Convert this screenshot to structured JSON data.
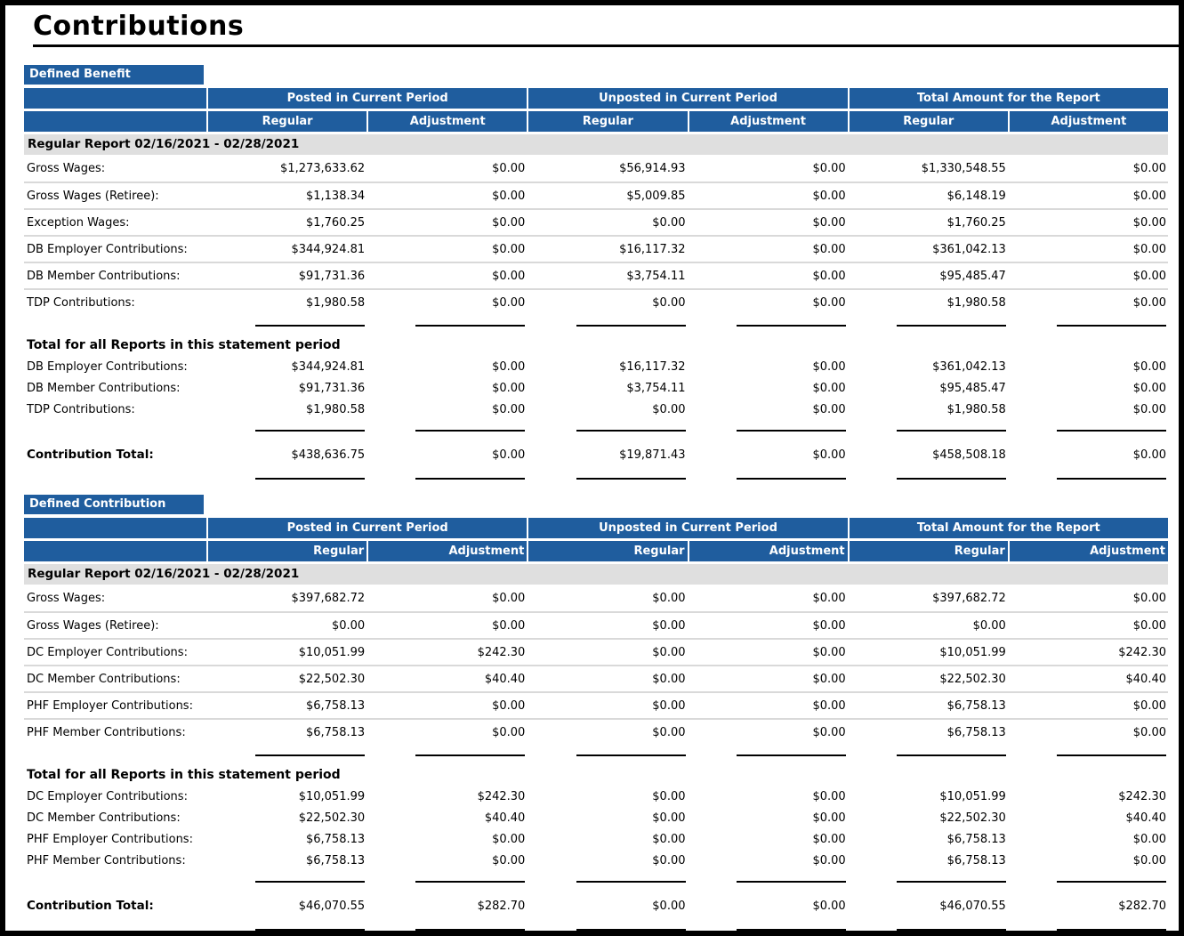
{
  "page": {
    "title": "Contributions"
  },
  "colors": {
    "header_blue": "#1F5D9E",
    "band_gray": "#DFDFDF",
    "row_divider": "#D9D9D9"
  },
  "columns": {
    "groups": [
      "Posted in Current Period",
      "Unposted in Current Period",
      "Total Amount for the Report"
    ],
    "subheaders": [
      "Regular",
      "Adjustment",
      "Regular",
      "Adjustment",
      "Regular",
      "Adjustment"
    ]
  },
  "sections": [
    {
      "name": "Defined Benefit",
      "subheader_align": "center",
      "report_band": "Regular Report 02/16/2021 - 02/28/2021",
      "detail_rows": [
        {
          "label": "Gross Wages:",
          "values": [
            "$1,273,633.62",
            "$0.00",
            "$56,914.93",
            "$0.00",
            "$1,330,548.55",
            "$0.00"
          ]
        },
        {
          "label": "Gross Wages (Retiree):",
          "values": [
            "$1,138.34",
            "$0.00",
            "$5,009.85",
            "$0.00",
            "$6,148.19",
            "$0.00"
          ]
        },
        {
          "label": "Exception Wages:",
          "values": [
            "$1,760.25",
            "$0.00",
            "$0.00",
            "$0.00",
            "$1,760.25",
            "$0.00"
          ]
        },
        {
          "label": "DB Employer Contributions:",
          "values": [
            "$344,924.81",
            "$0.00",
            "$16,117.32",
            "$0.00",
            "$361,042.13",
            "$0.00"
          ]
        },
        {
          "label": "DB Member Contributions:",
          "values": [
            "$91,731.36",
            "$0.00",
            "$3,754.11",
            "$0.00",
            "$95,485.47",
            "$0.00"
          ]
        },
        {
          "label": "TDP Contributions:",
          "values": [
            "$1,980.58",
            "$0.00",
            "$0.00",
            "$0.00",
            "$1,980.58",
            "$0.00"
          ]
        }
      ],
      "totals_heading": "Total for all Reports in this statement period",
      "total_rows": [
        {
          "label": "DB Employer Contributions:",
          "values": [
            "$344,924.81",
            "$0.00",
            "$16,117.32",
            "$0.00",
            "$361,042.13",
            "$0.00"
          ]
        },
        {
          "label": "DB Member Contributions:",
          "values": [
            "$91,731.36",
            "$0.00",
            "$3,754.11",
            "$0.00",
            "$95,485.47",
            "$0.00"
          ]
        },
        {
          "label": "TDP Contributions:",
          "values": [
            "$1,980.58",
            "$0.00",
            "$0.00",
            "$0.00",
            "$1,980.58",
            "$0.00"
          ]
        }
      ],
      "grand_total": {
        "label": "Contribution Total:",
        "values": [
          "$438,636.75",
          "$0.00",
          "$19,871.43",
          "$0.00",
          "$458,508.18",
          "$0.00"
        ]
      }
    },
    {
      "name": "Defined Contribution",
      "subheader_align": "right",
      "report_band": "Regular Report 02/16/2021 - 02/28/2021",
      "detail_rows": [
        {
          "label": "Gross Wages:",
          "values": [
            "$397,682.72",
            "$0.00",
            "$0.00",
            "$0.00",
            "$397,682.72",
            "$0.00"
          ]
        },
        {
          "label": "Gross Wages (Retiree):",
          "values": [
            "$0.00",
            "$0.00",
            "$0.00",
            "$0.00",
            "$0.00",
            "$0.00"
          ]
        },
        {
          "label": "DC Employer Contributions:",
          "values": [
            "$10,051.99",
            "$242.30",
            "$0.00",
            "$0.00",
            "$10,051.99",
            "$242.30"
          ]
        },
        {
          "label": "DC Member Contributions:",
          "values": [
            "$22,502.30",
            "$40.40",
            "$0.00",
            "$0.00",
            "$22,502.30",
            "$40.40"
          ]
        },
        {
          "label": "PHF Employer Contributions:",
          "values": [
            "$6,758.13",
            "$0.00",
            "$0.00",
            "$0.00",
            "$6,758.13",
            "$0.00"
          ]
        },
        {
          "label": "PHF Member Contributions:",
          "values": [
            "$6,758.13",
            "$0.00",
            "$0.00",
            "$0.00",
            "$6,758.13",
            "$0.00"
          ]
        }
      ],
      "totals_heading": "Total for all Reports in this statement period",
      "total_rows": [
        {
          "label": "DC Employer Contributions:",
          "values": [
            "$10,051.99",
            "$242.30",
            "$0.00",
            "$0.00",
            "$10,051.99",
            "$242.30"
          ]
        },
        {
          "label": "DC Member Contributions:",
          "values": [
            "$22,502.30",
            "$40.40",
            "$0.00",
            "$0.00",
            "$22,502.30",
            "$40.40"
          ]
        },
        {
          "label": "PHF Employer Contributions:",
          "values": [
            "$6,758.13",
            "$0.00",
            "$0.00",
            "$0.00",
            "$6,758.13",
            "$0.00"
          ]
        },
        {
          "label": "PHF Member Contributions:",
          "values": [
            "$6,758.13",
            "$0.00",
            "$0.00",
            "$0.00",
            "$6,758.13",
            "$0.00"
          ]
        }
      ],
      "grand_total": {
        "label": "Contribution Total:",
        "values": [
          "$46,070.55",
          "$282.70",
          "$0.00",
          "$0.00",
          "$46,070.55",
          "$282.70"
        ]
      }
    }
  ]
}
